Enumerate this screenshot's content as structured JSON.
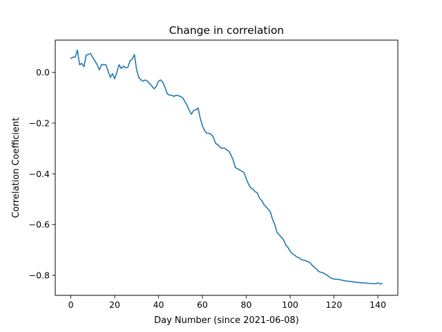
{
  "chart_data": {
    "type": "line",
    "title": "Change in correlation",
    "xlabel": "Day Number (since 2021-06-08)",
    "ylabel": "Correlation Coefficient",
    "xlim": [
      -7.1,
      149.1
    ],
    "ylim": [
      -0.879,
      0.127
    ],
    "xticks": [
      0,
      20,
      40,
      60,
      80,
      100,
      120,
      140
    ],
    "xtick_labels": [
      "0",
      "20",
      "40",
      "60",
      "80",
      "100",
      "120",
      "140"
    ],
    "yticks": [
      0.0,
      -0.2,
      -0.4,
      -0.6,
      -0.8
    ],
    "ytick_labels": [
      "0.0",
      "−0.2",
      "−0.4",
      "−0.6",
      "−0.8"
    ],
    "grid": false,
    "line_color": "#1f77b4",
    "series": [
      {
        "x": [
          0,
          1,
          2,
          3,
          4,
          5,
          6,
          7,
          8,
          9,
          10,
          11,
          12,
          13,
          14,
          15,
          16,
          17,
          18,
          19,
          20,
          21,
          22,
          23,
          24,
          25,
          26,
          27,
          28,
          29,
          30,
          31,
          32,
          33,
          34,
          35,
          36,
          37,
          38,
          39,
          40,
          41,
          42,
          43,
          44,
          45,
          46,
          47,
          48,
          49,
          50,
          51,
          52,
          53,
          54,
          55,
          56,
          57,
          58,
          59,
          60,
          61,
          62,
          63,
          64,
          65,
          66,
          67,
          68,
          69,
          70,
          71,
          72,
          73,
          74,
          75,
          76,
          77,
          78,
          79,
          80,
          81,
          82,
          83,
          84,
          85,
          86,
          87,
          88,
          89,
          90,
          91,
          92,
          93,
          94,
          95,
          96,
          97,
          98,
          99,
          100,
          101,
          102,
          103,
          104,
          105,
          106,
          107,
          108,
          109,
          110,
          111,
          112,
          113,
          114,
          115,
          116,
          117,
          118,
          119,
          120,
          121,
          122,
          123,
          124,
          125,
          126,
          127,
          128,
          129,
          130,
          131,
          132,
          133,
          134,
          135,
          136,
          137,
          138,
          139,
          140,
          141,
          142
        ],
        "y": [
          0.055,
          0.06,
          0.06,
          0.088,
          0.03,
          0.035,
          0.022,
          0.068,
          0.07,
          0.075,
          0.058,
          0.045,
          0.03,
          0.01,
          0.03,
          0.03,
          0.03,
          0.005,
          -0.02,
          -0.005,
          -0.025,
          0.0,
          0.03,
          0.015,
          0.025,
          0.018,
          0.02,
          0.045,
          0.052,
          0.07,
          0.01,
          -0.02,
          -0.03,
          -0.035,
          -0.03,
          -0.035,
          -0.045,
          -0.055,
          -0.065,
          -0.055,
          -0.035,
          -0.03,
          -0.04,
          -0.06,
          -0.085,
          -0.09,
          -0.09,
          -0.095,
          -0.09,
          -0.092,
          -0.095,
          -0.1,
          -0.115,
          -0.13,
          -0.15,
          -0.165,
          -0.15,
          -0.148,
          -0.14,
          -0.18,
          -0.21,
          -0.23,
          -0.24,
          -0.24,
          -0.245,
          -0.255,
          -0.28,
          -0.285,
          -0.295,
          -0.3,
          -0.298,
          -0.305,
          -0.31,
          -0.325,
          -0.345,
          -0.375,
          -0.38,
          -0.385,
          -0.39,
          -0.395,
          -0.42,
          -0.44,
          -0.455,
          -0.46,
          -0.47,
          -0.475,
          -0.495,
          -0.505,
          -0.52,
          -0.53,
          -0.54,
          -0.55,
          -0.58,
          -0.6,
          -0.63,
          -0.64,
          -0.65,
          -0.66,
          -0.68,
          -0.69,
          -0.705,
          -0.715,
          -0.72,
          -0.728,
          -0.73,
          -0.738,
          -0.74,
          -0.742,
          -0.746,
          -0.75,
          -0.76,
          -0.768,
          -0.775,
          -0.785,
          -0.788,
          -0.79,
          -0.795,
          -0.8,
          -0.808,
          -0.812,
          -0.815,
          -0.815,
          -0.816,
          -0.818,
          -0.82,
          -0.822,
          -0.823,
          -0.824,
          -0.825,
          -0.826,
          -0.827,
          -0.828,
          -0.829,
          -0.83,
          -0.83,
          -0.831,
          -0.832,
          -0.832,
          -0.833,
          -0.833,
          -0.83,
          -0.834,
          -0.833
        ]
      }
    ]
  }
}
